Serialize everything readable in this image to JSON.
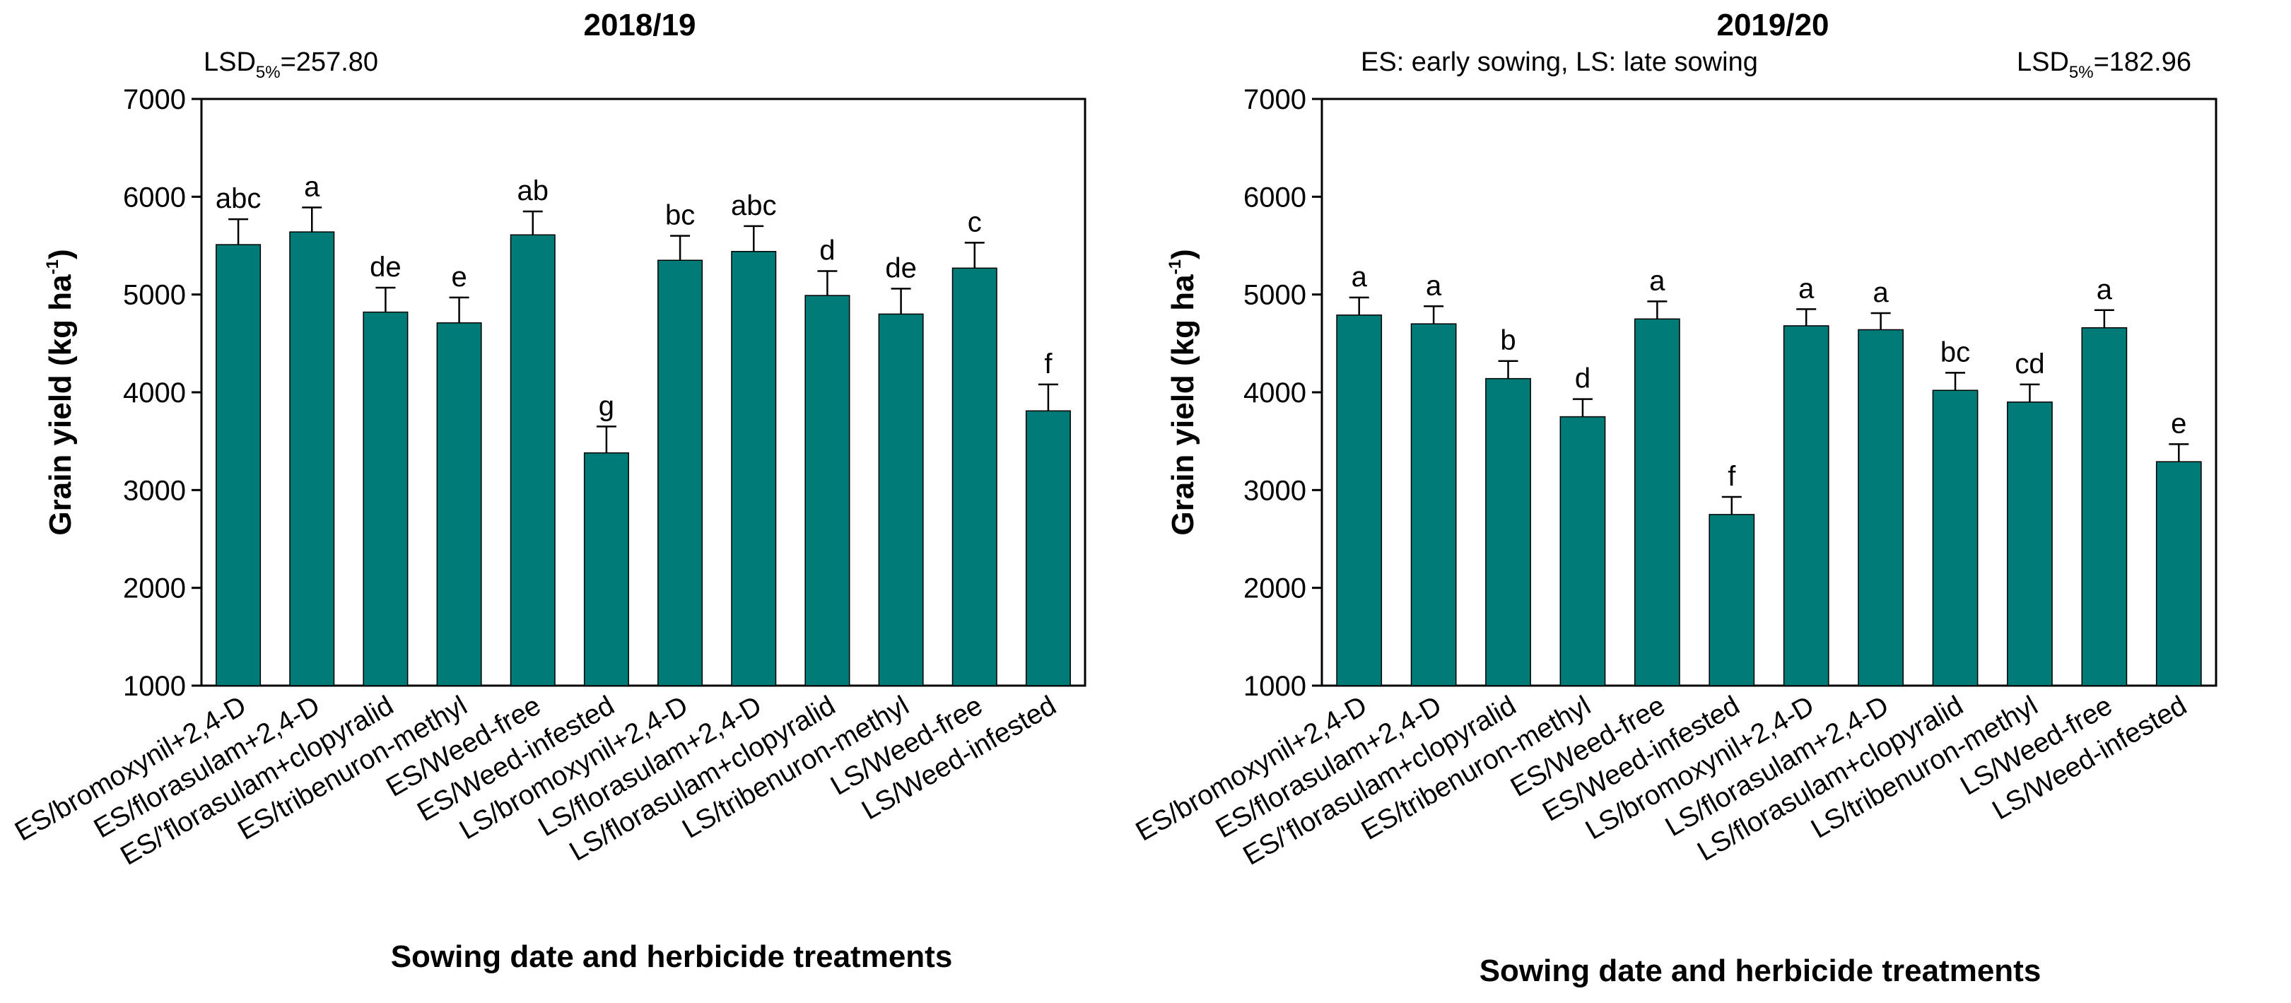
{
  "colors": {
    "bar": "#007B78",
    "axis": "#000000",
    "background": "#ffffff"
  },
  "chart_data": [
    {
      "type": "bar",
      "title": "2018/19",
      "lsd": {
        "prefix": "LSD",
        "sub": "5%",
        "value": "=257.80",
        "placement": "top-left"
      },
      "note": "",
      "ylabel": "Grain yield (kg ha",
      "ylabel_sup": "-1",
      "ylabel_close": ")",
      "xlabel": "Sowing date and herbicide treatments",
      "ylim": [
        1000,
        7000
      ],
      "yticks": [
        "1000",
        "2000",
        "3000",
        "4000",
        "5000",
        "6000",
        "7000"
      ],
      "categories": [
        "ES/bromoxynil+2,4-D",
        "ES/florasulam+2,4-D",
        "ES/'florasulam+clopyralid",
        "ES/tribenuron-methyl",
        "ES/Weed-free",
        "ES/Weed-infested",
        "LS/bromoxynil+2,4-D",
        "LS/florasulam+2,4-D",
        "LS/florasulam+clopyralid",
        "LS/tribenuron-methyl",
        "LS/Weed-free",
        "LS/Weed-infested"
      ],
      "values": [
        5510,
        5640,
        4820,
        4710,
        5610,
        3380,
        5350,
        5440,
        4990,
        4800,
        5270,
        3810
      ],
      "errors": [
        260,
        250,
        250,
        260,
        240,
        270,
        250,
        260,
        250,
        260,
        260,
        270
      ],
      "letters": [
        "abc",
        "a",
        "de",
        "e",
        "ab",
        "g",
        "bc",
        "abc",
        "d",
        "de",
        "c",
        "f"
      ]
    },
    {
      "type": "bar",
      "title": "2019/20",
      "lsd": {
        "prefix": "LSD",
        "sub": "5%",
        "value": "=182.96",
        "placement": "top-right"
      },
      "note": "ES: early sowing, LS: late sowing",
      "ylabel": "Grain yield (kg ha",
      "ylabel_sup": "-1",
      "ylabel_close": ")",
      "xlabel": "Sowing date and herbicide treatments",
      "ylim": [
        1000,
        7000
      ],
      "yticks": [
        "1000",
        "2000",
        "3000",
        "4000",
        "5000",
        "6000",
        "7000"
      ],
      "categories": [
        "ES/bromoxynil+2,4-D",
        "ES/florasulam+2,4-D",
        "ES/'florasulam+clopyralid",
        "ES/tribenuron-methyl",
        "ES/Weed-free",
        "ES/Weed-infested",
        "LS/bromoxynil+2,4-D",
        "LS/florasulam+2,4-D",
        "LS/florasulam+clopyralid",
        "LS/tribenuron-methyl",
        "LS/Weed-free",
        "LS/Weed-infested"
      ],
      "values": [
        4790,
        4700,
        4140,
        3750,
        4750,
        2750,
        4680,
        4640,
        4020,
        3900,
        4660,
        3290
      ],
      "errors": [
        180,
        180,
        180,
        180,
        180,
        180,
        170,
        170,
        180,
        180,
        180,
        180
      ],
      "letters": [
        "a",
        "a",
        "b",
        "d",
        "a",
        "f",
        "a",
        "a",
        "bc",
        "cd",
        "a",
        "e"
      ]
    }
  ]
}
